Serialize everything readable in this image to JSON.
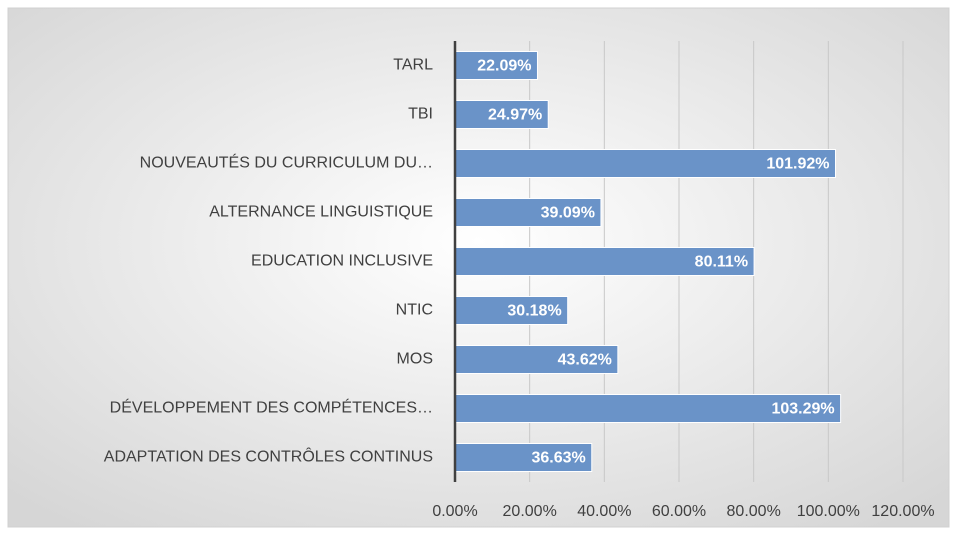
{
  "chart_data": {
    "type": "bar",
    "orientation": "horizontal",
    "categories": [
      "TARL",
      "TBI",
      "NOUVEAUTÉS DU CURRICULUM DU…",
      "ALTERNANCE LINGUISTIQUE",
      "EDUCATION INCLUSIVE",
      "NTIC",
      "MOS",
      "DÉVELOPPEMENT DES COMPÉTENCES…",
      "ADAPTATION DES CONTRÔLES CONTINUS"
    ],
    "values": [
      22.09,
      24.97,
      101.92,
      39.09,
      80.11,
      30.18,
      43.62,
      103.29,
      36.63
    ],
    "value_labels": [
      "22.09%",
      "24.97%",
      "101.92%",
      "39.09%",
      "80.11%",
      "30.18%",
      "43.62%",
      "103.29%",
      "36.63%"
    ],
    "color": "#6a93c8",
    "xlim": [
      0,
      120
    ],
    "xticks": [
      {
        "value": 0,
        "label": "0.00%"
      },
      {
        "value": 20,
        "label": "20.00%"
      },
      {
        "value": 40,
        "label": "40.00%"
      },
      {
        "value": 60,
        "label": "60.00%"
      },
      {
        "value": 80,
        "label": "80.00%"
      },
      {
        "value": 100,
        "label": "100.00%"
      },
      {
        "value": 120,
        "label": "120.00%"
      }
    ],
    "grid": true
  }
}
